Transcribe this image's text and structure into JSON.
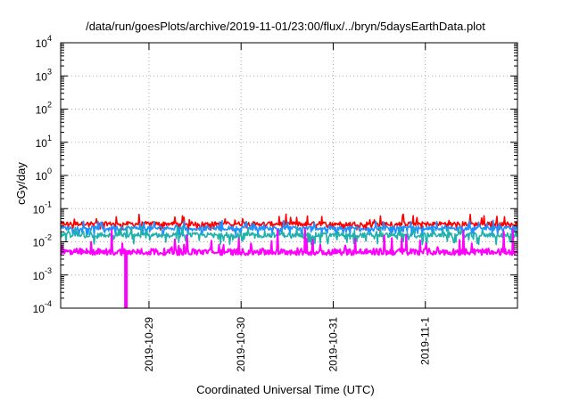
{
  "chart_data": {
    "type": "line",
    "title": "/data/run/goesPlots/archive/2019-11-01/23:00/flux/../bryn/5daysEarthData.plot",
    "xlabel": "Coordinated Universal Time (UTC)",
    "ylabel": "cGy/day",
    "yscale": "log",
    "ylim": [
      0.0001,
      10000
    ],
    "y_ticks": [
      {
        "exp": "-4"
      },
      {
        "exp": "-3"
      },
      {
        "exp": "-2"
      },
      {
        "exp": "-1"
      },
      {
        "exp": "0"
      },
      {
        "exp": "1"
      },
      {
        "exp": "2"
      },
      {
        "exp": "3"
      },
      {
        "exp": "4"
      }
    ],
    "y_tick_base": "10",
    "x_ticks": [
      "2019-10-29",
      "2019-10-30",
      "2019-10-31",
      "2019-11-1"
    ],
    "xlim": [
      "2019-10-28T01:00",
      "2019-11-02T00:00"
    ],
    "grid": true,
    "series": [
      {
        "color": "#ff0000",
        "typical": 0.035,
        "low": 0.022,
        "high": 0.07
      },
      {
        "color": "#1e90ff",
        "typical": 0.026,
        "low": 0.015,
        "high": 0.045
      },
      {
        "color": "#20b2aa",
        "typical": 0.016,
        "low": 0.008,
        "high": 0.03
      },
      {
        "color": "#ff00ff",
        "typical": 0.005,
        "low": 0.004,
        "high": 0.025
      }
    ],
    "dropout": {
      "x": "2019-10-28T18:00",
      "series_color": "#ff00ff",
      "value": 0.0001
    }
  }
}
